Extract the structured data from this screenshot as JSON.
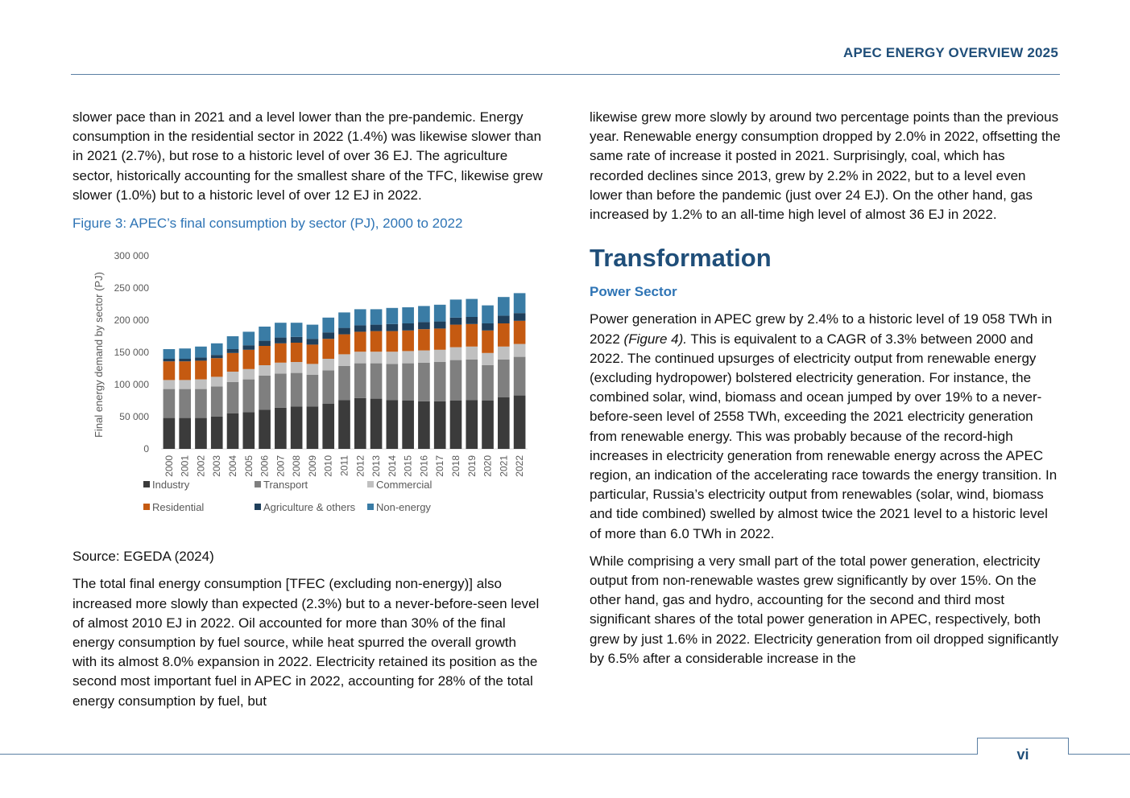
{
  "header": {
    "title": "APEC ENERGY OVERVIEW 2025"
  },
  "left_column": {
    "para1": "slower pace than in 2021 and a level lower than the pre-pandemic. Energy consumption in the residential sector in 2022 (1.4%) was likewise slower than in 2021 (2.7%), but rose to a historic level of over 36 EJ. The agriculture sector, historically accounting for the smallest share of the TFC, likewise grew slower (1.0%) but to a historic level of over 12 EJ in 2022.",
    "figure_caption": "Figure 3: APEC’s final consumption by sector (PJ), 2000 to 2022",
    "source": "Source: EGEDA (2024)",
    "para2": "The total final energy consumption [TFEC (excluding non-energy)] also increased more slowly than expected (2.3%) but to a never-before-seen level of almost 2010 EJ in 2022. Oil accounted for more than 30% of the final energy consumption by fuel source, while heat spurred the overall growth with its almost 8.0% expansion in 2022. Electricity retained its position as the second most important fuel in APEC in 2022, accounting for 28% of the total energy consumption by fuel, but"
  },
  "right_column": {
    "para1": "likewise grew more slowly by around two percentage points than the previous year. Renewable energy consumption dropped by 2.0% in 2022, offsetting the same rate of increase it posted in 2021. Surprisingly, coal, which has recorded declines since 2013, grew by 2.2% in 2022, but to a level even lower than before the pandemic (just over 24 EJ). On the other hand, gas increased by 1.2% to an all-time high level of almost 36 EJ in 2022.",
    "section_title": "Transformation",
    "subsection_title": "Power Sector",
    "para2_start": "Power generation in APEC grew by 2.4% to a historic level of 19 058 TWh in 2022 ",
    "para2_ref": "(Figure 4).",
    "para2_rest": " This is equivalent to a CAGR of 3.3% between 2000 and 2022. The continued upsurges of electricity output from renewable energy (excluding hydropower) bolstered electricity generation. For instance, the combined solar, wind, biomass and ocean jumped by over 19% to a never-before-seen level of 2558 TWh, exceeding the 2021 electricity generation from renewable energy. This was probably because of the record-high increases in electricity generation from renewable energy across the APEC region, an indication of the accelerating race towards the energy transition. In particular, Russia’s electricity output from renewables (solar, wind, biomass and tide combined) swelled by almost twice the 2021 level to a historic level of more than 6.0 TWh in 2022.",
    "para3": "While comprising a very small part of the total power generation, electricity output from non-renewable wastes grew significantly by over 15%. On the other hand, gas and hydro, accounting for the second and third most significant shares of the total power generation in APEC, respectively, both grew by just 1.6% in 2022. Electricity generation from oil dropped significantly by 6.5% after a considerable increase in the"
  },
  "footer": {
    "page_number": "vi"
  },
  "chart_data": {
    "type": "bar",
    "stacked": true,
    "title": "",
    "ylabel": "Final energy demand by sector (PJ)",
    "xlabel": "",
    "ylim": [
      0,
      300000
    ],
    "yticks": [
      0,
      50000,
      100000,
      150000,
      200000,
      250000,
      300000
    ],
    "ytick_labels": [
      "0",
      "50 000",
      "100 000",
      "150 000",
      "200 000",
      "250 000",
      "300 000"
    ],
    "legend_position": "bottom",
    "categories": [
      "2000",
      "2001",
      "2002",
      "2003",
      "2004",
      "2005",
      "2006",
      "2007",
      "2008",
      "2009",
      "2010",
      "2011",
      "2012",
      "2013",
      "2014",
      "2015",
      "2016",
      "2017",
      "2018",
      "2019",
      "2020",
      "2021",
      "2022"
    ],
    "series": [
      {
        "name": "Industry",
        "color": "#3b3b3b",
        "values": [
          48000,
          48000,
          48000,
          50000,
          55000,
          57000,
          61000,
          64000,
          66000,
          66000,
          70000,
          76000,
          79000,
          78000,
          76000,
          75000,
          74000,
          74000,
          75000,
          76000,
          75000,
          80000,
          83000
        ]
      },
      {
        "name": "Transport",
        "color": "#7f7f7f",
        "values": [
          45000,
          45000,
          45000,
          47000,
          49000,
          51000,
          53000,
          53000,
          52000,
          49000,
          52000,
          53000,
          54000,
          55000,
          56000,
          58000,
          60000,
          61000,
          63000,
          63000,
          55000,
          59000,
          60000
        ]
      },
      {
        "name": "Commercial",
        "color": "#c0c0c0",
        "values": [
          14000,
          14000,
          15000,
          15000,
          16000,
          16000,
          16000,
          17000,
          17000,
          17000,
          18000,
          18000,
          18000,
          18000,
          19000,
          19000,
          19000,
          19000,
          20000,
          20000,
          19000,
          20000,
          20000
        ]
      },
      {
        "name": "Residential",
        "color": "#c55a11",
        "values": [
          29000,
          29000,
          29000,
          29000,
          29000,
          30000,
          30000,
          30000,
          30000,
          30000,
          31000,
          31000,
          31000,
          32000,
          32000,
          32000,
          33000,
          33000,
          35000,
          35000,
          35000,
          36000,
          36000
        ]
      },
      {
        "name": "Agriculture & others",
        "color": "#1f3f5b",
        "values": [
          4000,
          4000,
          5000,
          5000,
          6000,
          7000,
          8000,
          9000,
          9000,
          9000,
          10000,
          10000,
          10000,
          10000,
          11000,
          11000,
          11000,
          11000,
          11000,
          11000,
          11000,
          12000,
          12000
        ]
      },
      {
        "name": "Non-energy",
        "color": "#3a7ca5",
        "values": [
          15000,
          16000,
          17000,
          18000,
          20000,
          21000,
          22000,
          23000,
          22000,
          22000,
          23000,
          24000,
          25000,
          24000,
          25000,
          25000,
          25000,
          26000,
          28000,
          28000,
          28000,
          29000,
          31000
        ]
      }
    ]
  }
}
